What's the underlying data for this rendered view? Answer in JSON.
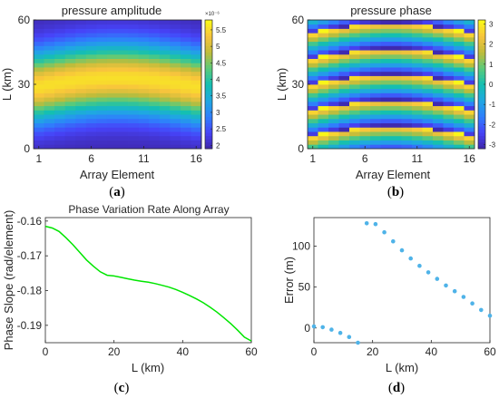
{
  "colormap": [
    "#3e26a8",
    "#4743f8",
    "#2f7ffc",
    "#1fa8e1",
    "#14bfb1",
    "#5bca7a",
    "#c0bc3a",
    "#f8c43d",
    "#f9fb15"
  ],
  "chart_data": [
    {
      "type": "heatmap",
      "title": "pressure amplitude",
      "xlabel": "Array Element",
      "ylabel": "L (km)",
      "xticks": [
        "1",
        "6",
        "11",
        "16"
      ],
      "yticks": [
        "0",
        "30",
        "60"
      ],
      "xlim": [
        1,
        16
      ],
      "ylim": [
        0,
        60
      ],
      "colorbar": {
        "ticks": [
          "2",
          "2.5",
          "3",
          "3.5",
          "4",
          "4.5",
          "5",
          "5.5"
        ],
        "exponent": "×10⁻⁶",
        "range": [
          1.9,
          5.8
        ]
      },
      "caption_letter": "a",
      "field": "gaussian band peaking near L = 29 km at the array ends, arching up to L = 33 km at elements 9–10; amplitude ≈ 5.5 at the band center, ≈ 2 at the edges"
    },
    {
      "type": "heatmap",
      "title": "pressure phase",
      "xlabel": "Array Element",
      "ylabel": "L (km)",
      "xticks": [
        "1",
        "6",
        "11",
        "16"
      ],
      "yticks": [
        "0",
        "30",
        "60"
      ],
      "xlim": [
        1,
        16
      ],
      "ylim": [
        0,
        60
      ],
      "colorbar": {
        "ticks": [
          "-3",
          "-2",
          "-1",
          "0",
          "1",
          "2",
          "3"
        ],
        "range": [
          -3.2,
          3.2
        ]
      },
      "caption_letter": "b",
      "field": "wrapped phase stripes, about 5 cycles over 60 km, arching upward toward elements 9–10"
    },
    {
      "type": "line",
      "title": "Phase Variation Rate Along Array",
      "xlabel": "L (km)",
      "ylabel": "Phase Slope (rad/element)",
      "xlim": [
        0,
        60
      ],
      "ylim": [
        -0.195,
        -0.159
      ],
      "xticks": [
        "0",
        "20",
        "40",
        "60"
      ],
      "yticks": [
        "-0.16",
        "-0.17",
        "-0.18",
        "-0.19"
      ],
      "ytick_values": [
        -0.16,
        -0.17,
        -0.18,
        -0.19
      ],
      "series_color": "#00e600",
      "x": [
        0,
        2,
        4,
        6,
        8,
        10,
        12,
        14,
        16,
        18,
        20,
        22,
        24,
        26,
        28,
        30,
        32,
        34,
        36,
        38,
        40,
        42,
        44,
        46,
        48,
        50,
        52,
        54,
        56,
        58,
        60
      ],
      "y": [
        -0.1615,
        -0.162,
        -0.163,
        -0.1648,
        -0.1668,
        -0.169,
        -0.1712,
        -0.173,
        -0.1746,
        -0.1756,
        -0.1758,
        -0.1762,
        -0.1766,
        -0.177,
        -0.1773,
        -0.1776,
        -0.178,
        -0.1785,
        -0.179,
        -0.1797,
        -0.1805,
        -0.1814,
        -0.1824,
        -0.1835,
        -0.1848,
        -0.1862,
        -0.1878,
        -0.1895,
        -0.1914,
        -0.1934,
        -0.1945
      ],
      "caption_letter": "c"
    },
    {
      "type": "scatter",
      "xlabel": "L (km)",
      "ylabel": "Error (m)",
      "xlim": [
        0,
        60
      ],
      "ylim": [
        -18,
        135
      ],
      "xticks": [
        "0",
        "20",
        "40",
        "60"
      ],
      "yticks": [
        "0",
        "50",
        "100"
      ],
      "ytick_values": [
        0,
        50,
        100
      ],
      "series_color": "#4fb3e8",
      "x": [
        0,
        3,
        6,
        9,
        12,
        15,
        18,
        21,
        24,
        27,
        30,
        33,
        36,
        39,
        42,
        45,
        48,
        51,
        54,
        57,
        60
      ],
      "y": [
        2,
        1,
        -2,
        -6,
        -11,
        -18,
        128,
        127,
        117,
        106,
        95,
        85,
        76,
        68,
        60,
        52,
        45,
        38,
        30,
        22,
        15
      ],
      "caption_letter": "d"
    }
  ]
}
